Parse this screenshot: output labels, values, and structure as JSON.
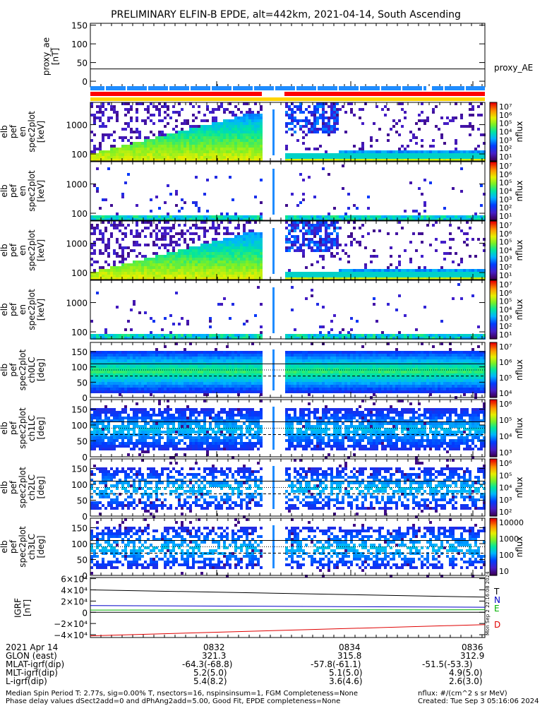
{
  "title": "PRELIMINARY ELFIN-B EPDE, alt=442km, 2021-04-14, South Ascending",
  "colors": {
    "red": "#ff0000",
    "yellow": "#ffd400",
    "blue": "#1f8cff",
    "navy": "#0000c8"
  },
  "chart_data": [
    {
      "id": "proxy_ae",
      "type": "line",
      "ylabel": "proxy_ae [nT]",
      "ylim": [
        -15,
        155
      ],
      "yticks": [
        "150",
        "100",
        "50",
        "0"
      ],
      "legend": "proxy_AE",
      "series": [
        {
          "name": "proxy_AE",
          "values": [
            33,
            33
          ]
        }
      ]
    },
    {
      "id": "spec_en_1",
      "type": "heatmap",
      "ylabel": [
        "elb",
        "pef",
        "en",
        "spec2plot",
        "[keV]"
      ],
      "scale": "log",
      "yticks": [
        "1000",
        "100"
      ],
      "cbar": {
        "label": "nflux",
        "ticks": [
          "10⁷",
          "10⁶",
          "10⁵",
          "10⁴",
          "10³",
          "10²",
          "10¹"
        ]
      }
    },
    {
      "id": "spec_en_2",
      "type": "heatmap",
      "ylabel": [
        "elb",
        "pef",
        "en",
        "spec2plot",
        "[keV]"
      ],
      "scale": "log",
      "yticks": [
        "1000",
        "100"
      ],
      "cbar": {
        "label": "nflux",
        "ticks": [
          "10⁷",
          "10⁶",
          "10⁵",
          "10⁴",
          "10³",
          "10²",
          "10¹"
        ]
      }
    },
    {
      "id": "spec_en_3",
      "type": "heatmap",
      "ylabel": [
        "elb",
        "pef",
        "en",
        "spec2plot",
        "[keV]"
      ],
      "scale": "log",
      "yticks": [
        "1000",
        "100"
      ],
      "cbar": {
        "label": "nflux",
        "ticks": [
          "10⁷",
          "10⁶",
          "10⁵",
          "10⁴",
          "10³",
          "10²",
          "10¹"
        ]
      }
    },
    {
      "id": "spec_en_4",
      "type": "heatmap",
      "ylabel": [
        "elb",
        "pef",
        "en",
        "spec2plot",
        "[keV]"
      ],
      "scale": "log",
      "yticks": [
        "1000",
        "100"
      ],
      "cbar": {
        "label": "nflux",
        "ticks": [
          "10⁷",
          "10⁶",
          "10⁵",
          "10⁴",
          "10³",
          "10²",
          "10¹"
        ]
      }
    },
    {
      "id": "spec_pa_0",
      "type": "heatmap",
      "ylabel": [
        "elb",
        "pef",
        "spec2plot",
        "ch0LC",
        "[deg]"
      ],
      "yticks": [
        "150",
        "100",
        "50",
        "0"
      ],
      "ylim": [
        0,
        180
      ],
      "cbar": {
        "label": "nflux",
        "ticks": [
          "10⁷",
          "10⁶",
          "10⁵",
          "10⁴"
        ]
      }
    },
    {
      "id": "spec_pa_1",
      "type": "heatmap",
      "ylabel": [
        "elb",
        "pef",
        "spec2plot",
        "ch1LC",
        "[deg]"
      ],
      "yticks": [
        "150",
        "100",
        "50",
        "0"
      ],
      "ylim": [
        0,
        180
      ],
      "cbar": {
        "label": "nflux",
        "ticks": [
          "10⁶",
          "10⁵",
          "10⁴",
          "10³"
        ]
      }
    },
    {
      "id": "spec_pa_2",
      "type": "heatmap",
      "ylabel": [
        "elb",
        "pef",
        "spec2plot",
        "ch2LC",
        "[deg]"
      ],
      "yticks": [
        "150",
        "100",
        "50",
        "0"
      ],
      "ylim": [
        0,
        180
      ],
      "cbar": {
        "label": "nflux",
        "ticks": [
          "10⁶",
          "10⁵",
          "10⁴",
          "10³",
          "10²"
        ]
      }
    },
    {
      "id": "spec_pa_3",
      "type": "heatmap",
      "ylabel": [
        "elb",
        "pef",
        "spec2plot",
        "ch3LC",
        "[deg]"
      ],
      "yticks": [
        "150",
        "100",
        "50",
        "0"
      ],
      "ylim": [
        0,
        180
      ],
      "cbar": {
        "label": "nflux",
        "ticks": [
          "10000",
          "1000",
          "100",
          "10"
        ]
      }
    },
    {
      "id": "igrf",
      "type": "line",
      "ylabel": "IGRF [nT]",
      "ylim": [
        -45000,
        62000
      ],
      "yticks": [
        "6×10⁴",
        "4×10⁴",
        "2×10⁴",
        "0",
        "−2×10⁴",
        "−4×10⁴"
      ],
      "series": [
        {
          "name": "T",
          "values": [
            40000,
            27000
          ]
        },
        {
          "name": "N",
          "values": [
            12000,
            9000
          ]
        },
        {
          "name": "E",
          "values": [
            4000,
            4500
          ]
        },
        {
          "name": "D",
          "values": [
            -42000,
            -22000
          ]
        }
      ]
    }
  ],
  "side_stamp": "Mon Sep  2 22:16:08 2024",
  "ephemeris": {
    "row_labels": [
      "2021 Apr 14",
      "GLON (east)",
      "MLAT-igrf(dip)",
      "MLT-igrf(dip)",
      "L-igrf(dip)"
    ],
    "columns": [
      {
        "time": "0832",
        "glon": "321.3",
        "mlat": "-64.3(-68.8)",
        "mlt": "5.2(5.0)",
        "l": "5.4(8.2)"
      },
      {
        "time": "0834",
        "glon": "315.8",
        "mlat": "-57.8(-61.1)",
        "mlt": "5.1(5.0)",
        "l": "3.6(4.6)"
      },
      {
        "time": "0836",
        "glon": "312.9",
        "mlat": "-51.5(-53.3)",
        "mlt": "4.9(5.0)",
        "l": "2.6(3.0)"
      }
    ]
  },
  "footer": {
    "line1": "Median Spin Period T: 2.77s, sig=0.00% T, nsectors=16, nspinsinsum=1, FGM Completeness=None",
    "line2": "Phase delay values dSect2add=0 and dPhAng2add=5.00, Good Fit, EPDE completeness=None",
    "units": "nflux: #/(cm^2 s sr MeV)",
    "created": "Created: Tue Sep  3 05:16:06 2024"
  }
}
